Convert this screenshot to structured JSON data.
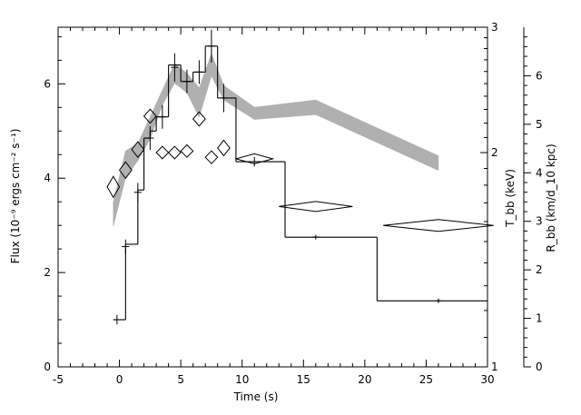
{
  "chart_data": {
    "type": "line",
    "x_axis": {
      "label": "Time (s)",
      "range": [
        -5,
        30
      ],
      "ticks": [
        -5,
        0,
        5,
        10,
        15,
        20,
        25,
        30
      ]
    },
    "left_axis": {
      "label": "Flux (10⁻⁹ ergs cm⁻² s⁻¹)",
      "range": [
        0,
        7.2
      ],
      "ticks": [
        0,
        2,
        4,
        6
      ]
    },
    "t_axis": {
      "label": "T_bb (keV)",
      "scale": "log",
      "range": [
        1,
        3
      ],
      "ticks": [
        1,
        2,
        3
      ]
    },
    "r_axis": {
      "label": "R_bb (km/d_10 kpc)",
      "range": [
        0,
        7
      ],
      "ticks": [
        0,
        1,
        2,
        3,
        4,
        5,
        6
      ]
    },
    "flux_histogram": [
      {
        "x0": -0.5,
        "x1": 0.5,
        "y": 1.0
      },
      {
        "x0": 0.5,
        "x1": 1.5,
        "y": 2.6
      },
      {
        "x0": 1.5,
        "x1": 2.0,
        "y": 3.75
      },
      {
        "x0": 2.0,
        "x1": 2.5,
        "y": 4.85
      },
      {
        "x0": 2.5,
        "x1": 3.0,
        "y": 5.0
      },
      {
        "x0": 3.0,
        "x1": 4.0,
        "y": 5.3
      },
      {
        "x0": 4.0,
        "x1": 5.0,
        "y": 6.4
      },
      {
        "x0": 5.0,
        "x1": 6.0,
        "y": 6.05
      },
      {
        "x0": 6.0,
        "x1": 7.0,
        "y": 6.25
      },
      {
        "x0": 7.0,
        "x1": 8.0,
        "y": 6.8
      },
      {
        "x0": 8.0,
        "x1": 9.5,
        "y": 5.7
      },
      {
        "x0": 9.5,
        "x1": 13.5,
        "y": 4.35
      },
      {
        "x0": 13.5,
        "x1": 21.0,
        "y": 2.75
      },
      {
        "x0": 21.0,
        "x1": 30.0,
        "y": 1.4
      }
    ],
    "flux_errorbars": [
      {
        "x": -0.2,
        "y": 1.0,
        "dx": 0.3,
        "dy": 0.1
      },
      {
        "x": 0.5,
        "y": 2.55,
        "dx": 0.3,
        "dy": 0.15
      },
      {
        "x": 1.5,
        "y": 3.7,
        "dx": 0.3,
        "dy": 0.2
      },
      {
        "x": 2.5,
        "y": 4.85,
        "dx": 0.3,
        "dy": 0.25
      },
      {
        "x": 3.5,
        "y": 5.3,
        "dx": 0.3,
        "dy": 0.25
      },
      {
        "x": 4.5,
        "y": 6.35,
        "dx": 0.3,
        "dy": 0.3
      },
      {
        "x": 5.5,
        "y": 6.05,
        "dx": 0.3,
        "dy": 0.25
      },
      {
        "x": 6.5,
        "y": 6.25,
        "dx": 0.3,
        "dy": 0.25
      },
      {
        "x": 7.5,
        "y": 6.8,
        "dx": 0.3,
        "dy": 0.35
      },
      {
        "x": 8.5,
        "y": 5.7,
        "dx": 0.3,
        "dy": 0.3
      },
      {
        "x": 11.0,
        "y": 4.35,
        "dx": 0.3,
        "dy": 0.1
      },
      {
        "x": 16.0,
        "y": 2.75,
        "dx": 0.3,
        "dy": 0.05
      },
      {
        "x": 26.0,
        "y": 1.4,
        "dx": 0.2,
        "dy": 0.05
      }
    ],
    "temperature_points": [
      {
        "x": -0.5,
        "y": 1.79,
        "xerr": 0.5,
        "yerr": 0.06
      },
      {
        "x": 0.5,
        "y": 1.89,
        "xerr": 0.5,
        "yerr": 0.05
      },
      {
        "x": 1.5,
        "y": 2.02,
        "xerr": 0.5,
        "yerr": 0.05
      },
      {
        "x": 2.5,
        "y": 2.25,
        "xerr": 0.5,
        "yerr": 0.05
      },
      {
        "x": 3.5,
        "y": 2.0,
        "xerr": 0.5,
        "yerr": 0.04
      },
      {
        "x": 4.5,
        "y": 2.0,
        "xerr": 0.5,
        "yerr": 0.04
      },
      {
        "x": 5.5,
        "y": 2.01,
        "xerr": 0.5,
        "yerr": 0.04
      },
      {
        "x": 6.5,
        "y": 2.23,
        "xerr": 0.5,
        "yerr": 0.05
      },
      {
        "x": 7.5,
        "y": 1.97,
        "xerr": 0.5,
        "yerr": 0.04
      },
      {
        "x": 8.5,
        "y": 2.03,
        "xerr": 0.5,
        "yerr": 0.05
      },
      {
        "x": 11.0,
        "y": 1.96,
        "xerr": 1.5,
        "yerr": 0.03
      },
      {
        "x": 16.0,
        "y": 1.68,
        "xerr": 3.0,
        "yerr": 0.02
      },
      {
        "x": 26.0,
        "y": 1.58,
        "xerr": 4.5,
        "yerr": 0.03
      }
    ],
    "radius_band": [
      {
        "x": -0.5,
        "low": 2.9,
        "high": 3.4
      },
      {
        "x": 0.5,
        "low": 3.9,
        "high": 4.45
      },
      {
        "x": 1.5,
        "low": 4.25,
        "high": 4.6
      },
      {
        "x": 2.5,
        "low": 4.7,
        "high": 5.15
      },
      {
        "x": 3.5,
        "low": 5.4,
        "high": 5.7
      },
      {
        "x": 4.5,
        "low": 5.85,
        "high": 6.25
      },
      {
        "x": 5.5,
        "low": 5.65,
        "high": 6.05
      },
      {
        "x": 6.5,
        "low": 5.15,
        "high": 5.75
      },
      {
        "x": 7.5,
        "low": 6.0,
        "high": 6.45
      },
      {
        "x": 8.5,
        "low": 5.5,
        "high": 5.8
      },
      {
        "x": 11.0,
        "low": 5.1,
        "high": 5.35
      },
      {
        "x": 16.0,
        "low": 5.2,
        "high": 5.5
      },
      {
        "x": 26.0,
        "low": 4.05,
        "high": 4.35
      }
    ]
  }
}
